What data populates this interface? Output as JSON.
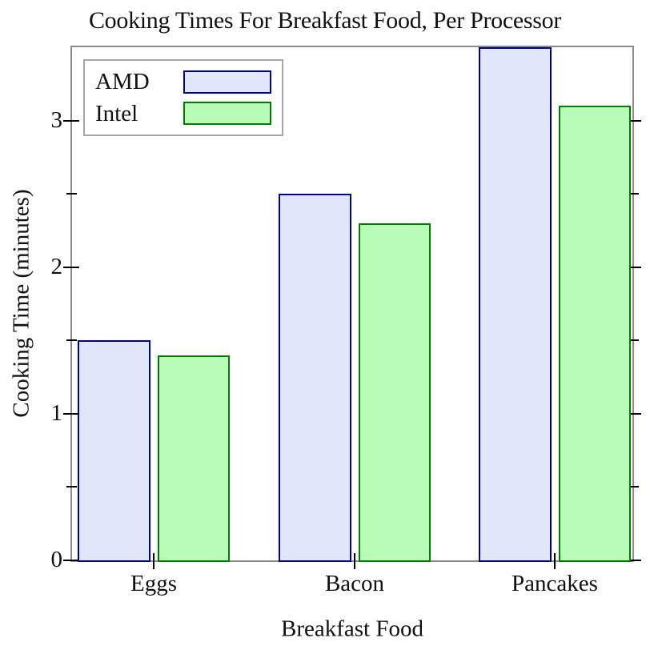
{
  "chart_data": {
    "type": "bar",
    "title": "Cooking Times For Breakfast Food, Per Processor",
    "xlabel": "Breakfast Food",
    "ylabel": "Cooking Time (minutes)",
    "categories": [
      "Eggs",
      "Bacon",
      "Pancakes"
    ],
    "series": [
      {
        "name": "AMD",
        "values": [
          1.5,
          2.5,
          3.5
        ],
        "fill": "#e1e6f9",
        "stroke": "#00008c"
      },
      {
        "name": "Intel",
        "values": [
          1.4,
          2.3,
          3.1
        ],
        "fill": "#b7fcb7",
        "stroke": "#007d00"
      }
    ],
    "ylim": [
      0,
      3.5
    ],
    "yticks_major": [
      0,
      1,
      2,
      3
    ],
    "yticks_minor": [
      0.5,
      1.5,
      2.5
    ],
    "legend_position": "top-left",
    "grid": false,
    "frame_color": "#8c8c8c",
    "tick_color": "#000000"
  }
}
